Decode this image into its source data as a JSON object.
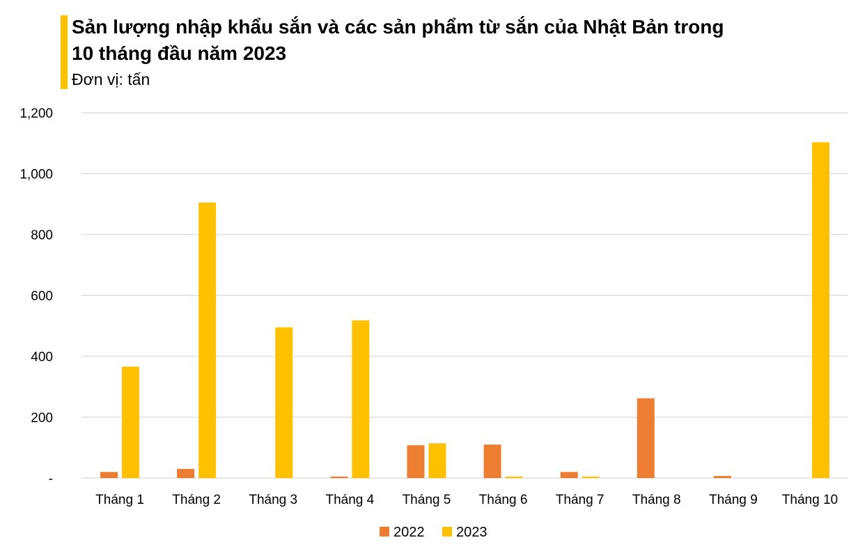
{
  "header": {
    "title_line1": "Sản lượng nhập khẩu sắn và các sản phẩm từ sắn của Nhật Bản trong",
    "title_line2": "10 tháng đầu năm 2023",
    "subtitle": "Đơn vị: tấn",
    "accent_color": "#FFC000"
  },
  "chart_data": {
    "type": "bar",
    "title": "Sản lượng nhập khẩu sắn và các sản phẩm từ sắn của Nhật Bản trong 10 tháng đầu năm 2023",
    "subtitle": "Đơn vị: tấn",
    "categories": [
      "Tháng 1",
      "Tháng 2",
      "Tháng 3",
      "Tháng 4",
      "Tháng 5",
      "Tháng 6",
      "Tháng 7",
      "Tháng 8",
      "Tháng 9",
      "Tháng 10"
    ],
    "series": [
      {
        "name": "2022",
        "color": "#ED7D31",
        "values": [
          20,
          30,
          0,
          5,
          108,
          110,
          20,
          262,
          7,
          0
        ]
      },
      {
        "name": "2023",
        "color": "#FFC000",
        "values": [
          366,
          905,
          495,
          518,
          114,
          5,
          5,
          0,
          0,
          1103
        ]
      }
    ],
    "ylim": [
      0,
      1200
    ],
    "yticks": [
      0,
      200,
      400,
      600,
      800,
      1000,
      1200
    ],
    "ytick_labels": [
      "-",
      "200",
      "400",
      "600",
      "800",
      "1,000",
      "1,200"
    ],
    "grid": true,
    "legend": "bottom",
    "xlabel": "",
    "ylabel": ""
  }
}
